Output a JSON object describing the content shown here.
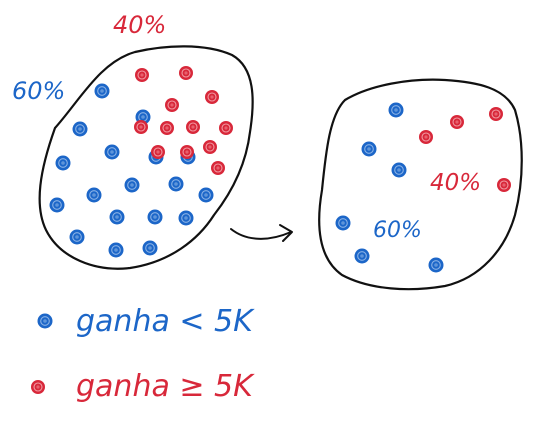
{
  "colors": {
    "blue": "#1c66c8",
    "red": "#d8283a",
    "ink": "#111111",
    "background": "#ffffff"
  },
  "population": {
    "blue_percent_label": "60%",
    "red_percent_label": "40%",
    "blue_dot_count": 18,
    "red_dot_count": 12
  },
  "sample": {
    "blue_percent_label": "60%",
    "red_percent_label": "40%",
    "blue_dot_count": 6,
    "red_dot_count": 4
  },
  "arrow": {
    "icon": "curved-arrow-right-icon"
  },
  "legend": [
    {
      "color": "blue",
      "label": "ganha < 5K"
    },
    {
      "color": "red",
      "label": "ganha ≥ 5K"
    }
  ]
}
